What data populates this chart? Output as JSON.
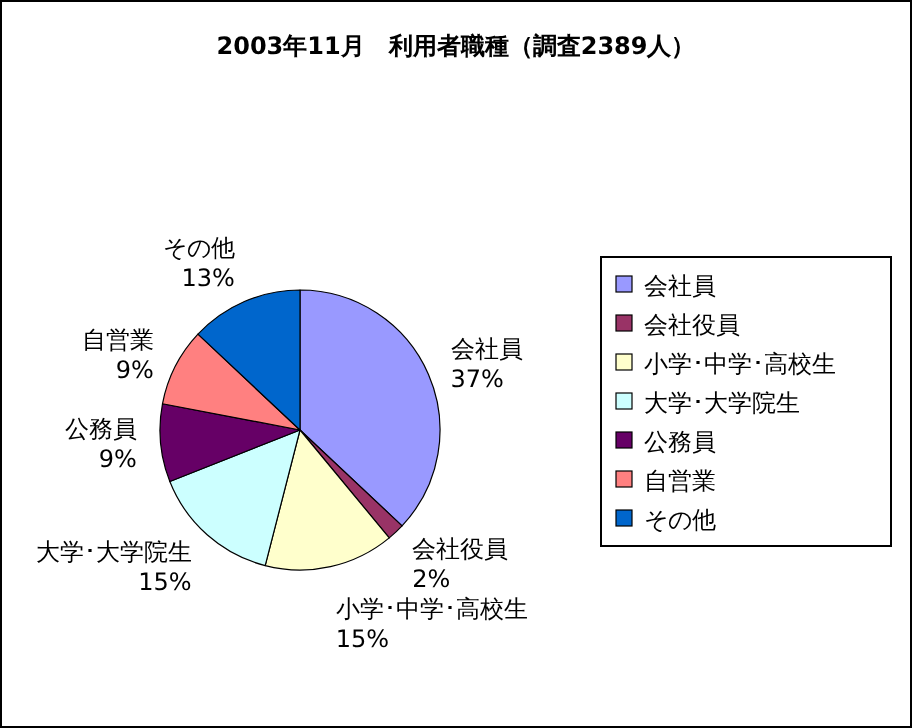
{
  "chart_data": {
    "type": "pie",
    "title": "2003年11月　利用者職種（調査2389人）",
    "categories": [
      "会社員",
      "会社役員",
      "小学･中学･高校生",
      "大学･大学院生",
      "公務員",
      "自営業",
      "その他"
    ],
    "values": [
      37,
      2,
      15,
      15,
      9,
      9,
      13
    ],
    "value_labels": [
      "37%",
      "2%",
      "15%",
      "15%",
      "9%",
      "9%",
      "13%"
    ],
    "colors": [
      "#9999ff",
      "#993366",
      "#ffffcc",
      "#ccffff",
      "#660066",
      "#ff8080",
      "#0066cc"
    ],
    "legend": "right"
  }
}
